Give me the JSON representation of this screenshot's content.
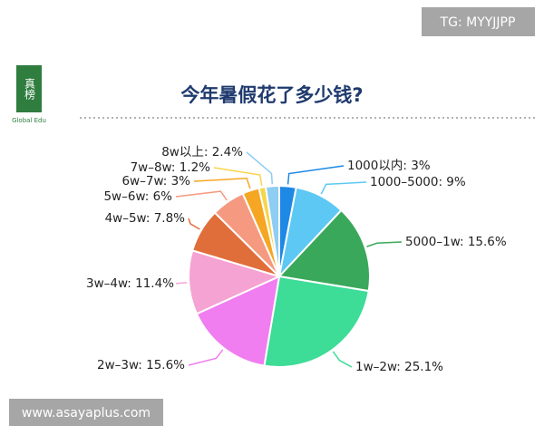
{
  "header": {
    "logo": "真榜",
    "logo_sub": "Global Edu",
    "watermark_top": "TG: MYYJJPP",
    "watermark_bottom": "www.asayaplus.com"
  },
  "chart_data": {
    "type": "pie",
    "title": "今年暑假花了多少钱?",
    "values": [
      3,
      9,
      15.6,
      25.1,
      15.6,
      11.4,
      7.8,
      6,
      3,
      1.2,
      2.4
    ],
    "value_labels": [
      "1000以内: 3%",
      "1000–5000: 9%",
      "5000–1w: 15.6%",
      "1w–2w: 25.1%",
      "2w–3w: 15.6%",
      "3w–4w: 11.4%",
      "4w–5w: 7.8%",
      "5w–6w: 6%",
      "6w–7w: 3%",
      "7w–8w: 1.2%",
      "8w以上: 2.4%"
    ],
    "colors": [
      "#1e88e5",
      "#5cc8f3",
      "#3aa85a",
      "#3ddc97",
      "#f07ef0",
      "#f5a3d3",
      "#e06e3a",
      "#f59a80",
      "#f5a623",
      "#f7d54a",
      "#8fcdf2"
    ]
  }
}
